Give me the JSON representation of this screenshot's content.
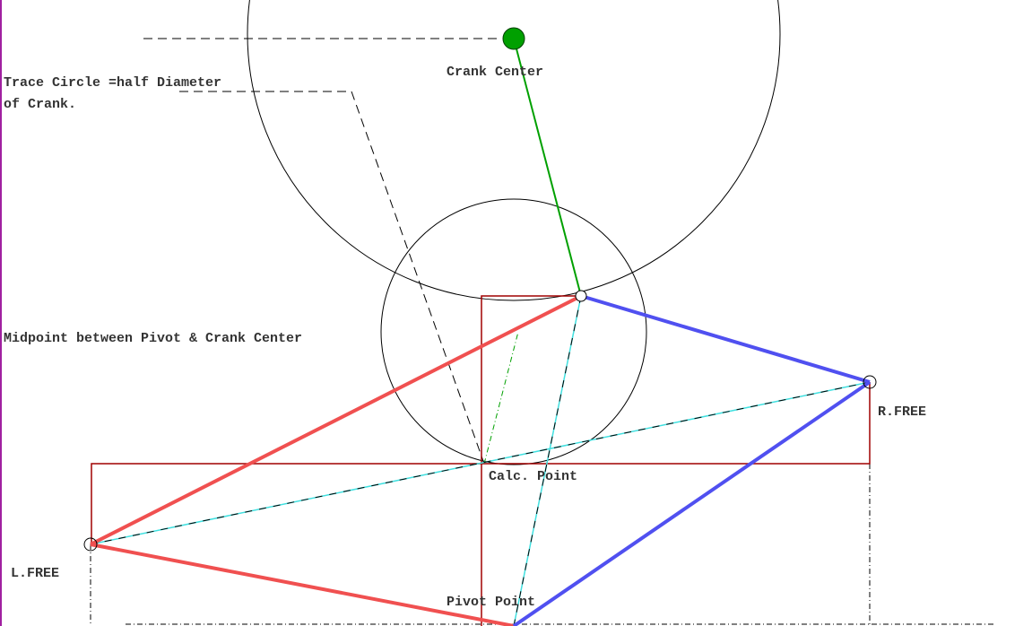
{
  "labels": {
    "crank_center": "Crank Center",
    "trace_circle_1": "Trace Circle =half Diameter",
    "trace_circle_2": "of Crank.",
    "midpoint": "Midpoint between Pivot & Crank Center",
    "r_free": "R.FREE",
    "calc_point": "Calc. Point",
    "l_free": "L.FREE",
    "pivot_point": "Pivot Point"
  }
}
